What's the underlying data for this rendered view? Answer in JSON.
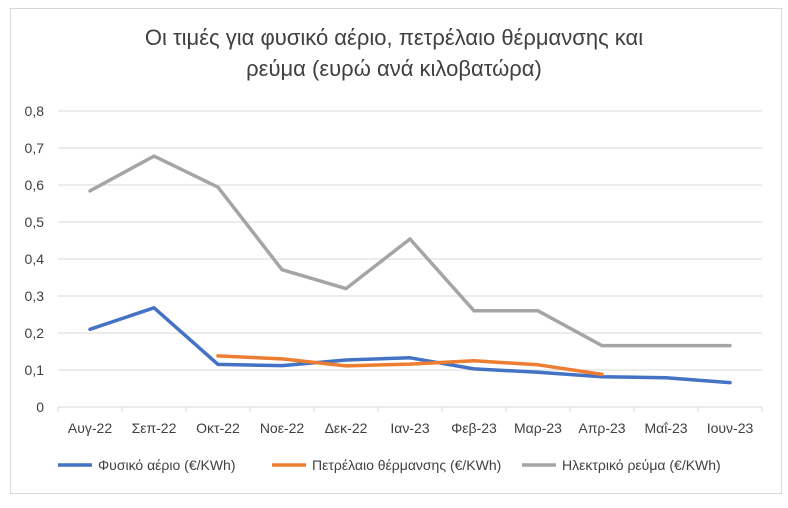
{
  "chart_data": {
    "type": "line",
    "title_line1": "Οι τιμές για φυσικό αέριο, πετρέλαιο θέρμανσης και",
    "title_line2": "ρεύμα (ευρώ ανά κιλοβατώρα)",
    "categories": [
      "Αυγ-22",
      "Σεπ-22",
      "Οκτ-22",
      "Νοε-22",
      "Δεκ-22",
      "Ιαν-23",
      "Φεβ-23",
      "Μαρ-23",
      "Απρ-23",
      "Μαΐ-23",
      "Ιουν-23"
    ],
    "ylim": [
      0,
      0.8
    ],
    "yticks": [
      "0",
      "0,1",
      "0,2",
      "0,3",
      "0,4",
      "0,5",
      "0,6",
      "0,7",
      "0,8"
    ],
    "grid": true,
    "legend_position": "bottom",
    "series": [
      {
        "name": "Φυσικό αέριο (€/KWh)",
        "color": "#4472c4",
        "values": [
          0.21,
          0.268,
          0.115,
          0.112,
          0.127,
          0.133,
          0.103,
          0.094,
          0.082,
          0.079,
          0.066
        ]
      },
      {
        "name": "Πετρέλαιο θέρμανσης (€/KWh)",
        "color": "#ed7d31",
        "values": [
          null,
          null,
          0.138,
          0.13,
          0.111,
          0.116,
          0.125,
          0.114,
          0.088,
          null,
          null
        ]
      },
      {
        "name": "Ηλεκτρικό ρεύμα (€/KWh)",
        "color": "#a5a5a5",
        "values": [
          0.584,
          0.678,
          0.594,
          0.371,
          0.32,
          0.454,
          0.26,
          0.26,
          0.166,
          0.166,
          0.166
        ]
      }
    ]
  }
}
